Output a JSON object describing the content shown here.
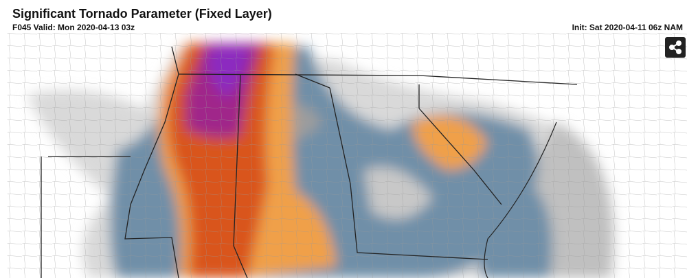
{
  "header": {
    "title": "Significant Tornado Parameter (Fixed Layer)",
    "valid": "F045 Valid: Mon 2020-04-13 03z",
    "init": "Init: Sat 2020-04-11 06z NAM"
  }
}
